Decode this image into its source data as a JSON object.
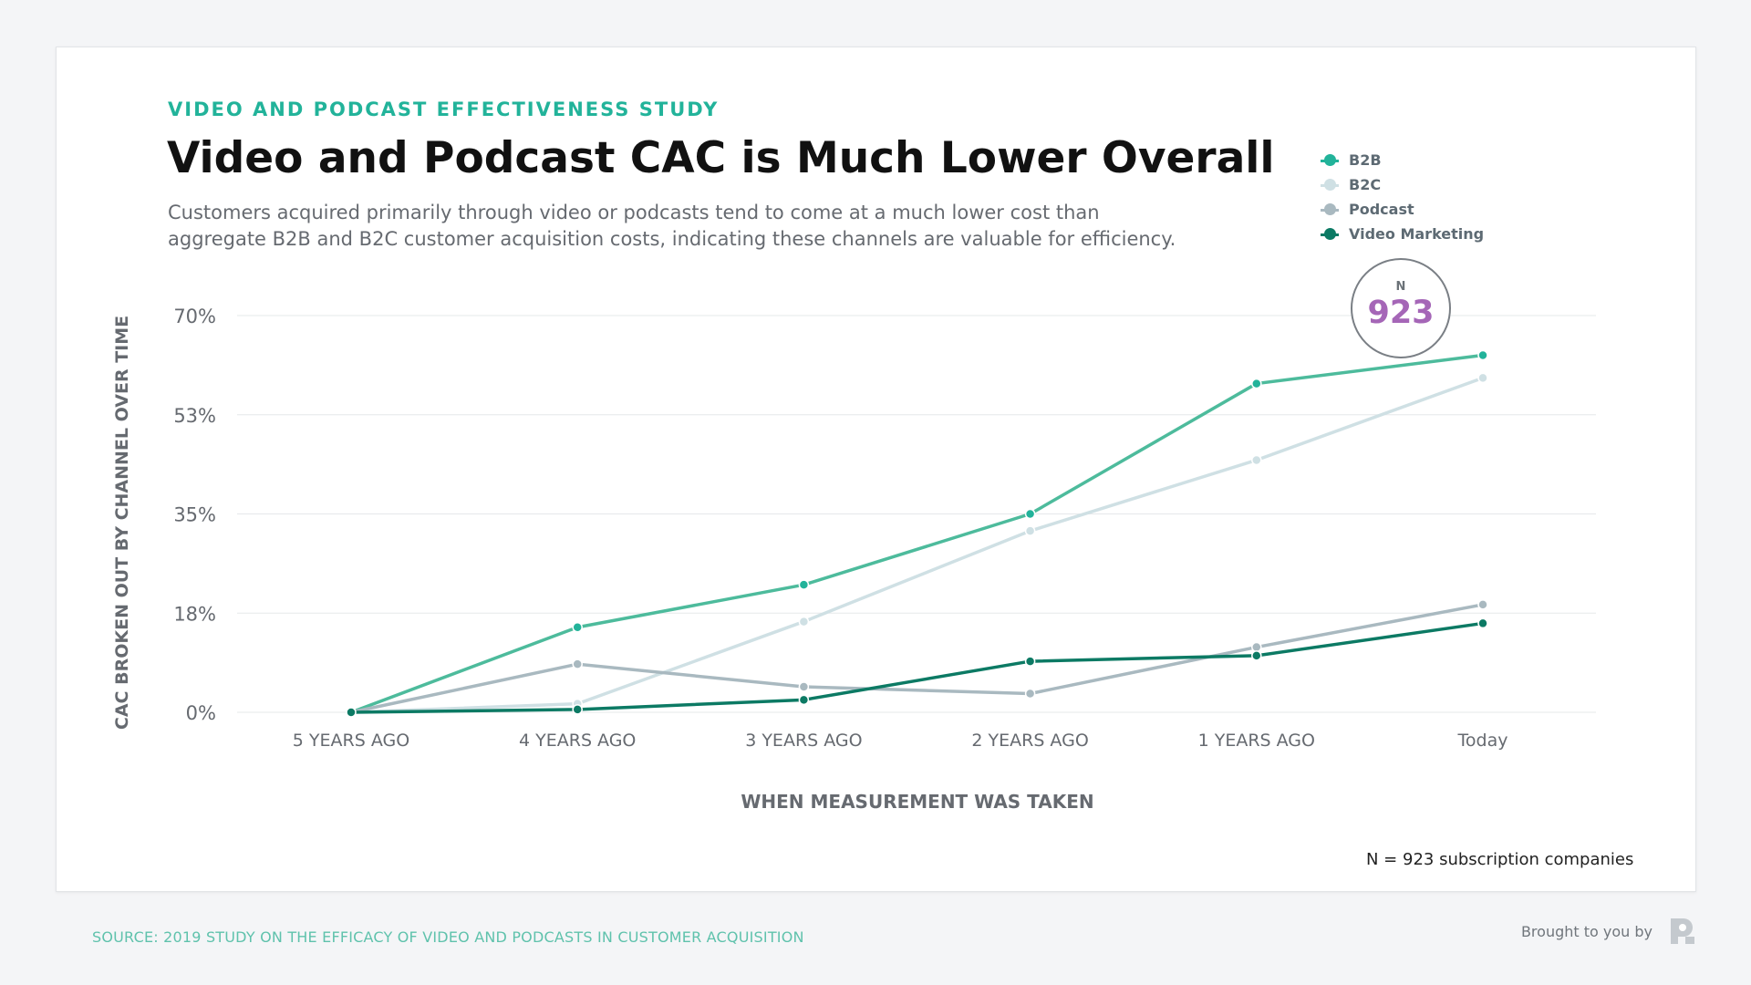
{
  "header": {
    "eyebrow": "VIDEO AND PODCAST EFFECTIVENESS STUDY",
    "title": "Video and Podcast CAC is Much Lower Overall",
    "subtitle": "Customers acquired primarily through video or podcasts tend to come at a much lower cost than aggregate B2B and B2C customer acquisition costs, indicating these channels are valuable for efficiency."
  },
  "legend": [
    {
      "name": "B2B",
      "color": "#22b39a"
    },
    {
      "name": "B2C",
      "color": "#cfe0e4"
    },
    {
      "name": "Podcast",
      "color": "#a9b9c0"
    },
    {
      "name": "Video Marketing",
      "color": "#0c7a64"
    }
  ],
  "badge": {
    "label": "N",
    "value": "923"
  },
  "chart_data": {
    "type": "line",
    "categories": [
      "5 YEARS AGO",
      "4 YEARS AGO",
      "3 YEARS AGO",
      "2 YEARS AGO",
      "1 YEARS AGO",
      "Today"
    ],
    "yticks": [
      "0%",
      "18%",
      "35%",
      "53%",
      "70%"
    ],
    "ylim": [
      0,
      70
    ],
    "xlabel": "WHEN MEASUREMENT WAS TAKEN",
    "ylabel": "CAC BROKEN OUT BY CHANNEL OVER TIME",
    "grid": true,
    "legend_position": "top-right",
    "series": [
      {
        "name": "B2B",
        "color": "#4dbb9c",
        "marker": "#22b39a",
        "values": [
          0,
          15,
          22.5,
          35,
          58,
          63
        ]
      },
      {
        "name": "B2C",
        "color": "#cfe0e4",
        "marker": "#cfe0e4",
        "values": [
          0,
          1.5,
          16,
          32,
          44.5,
          59
        ]
      },
      {
        "name": "Podcast",
        "color": "#a9b9c0",
        "marker": "#a9b9c0",
        "values": [
          0,
          8.5,
          4.5,
          3.3,
          11.5,
          19
        ]
      },
      {
        "name": "Video Marketing",
        "color": "#0c7a64",
        "marker": "#0c7a64",
        "values": [
          0,
          0.5,
          2.2,
          9,
          10,
          15.7
        ]
      }
    ]
  },
  "footnote": "N = 923 subscription companies",
  "source": "SOURCE: 2019 STUDY ON THE EFFICACY OF VIDEO AND PODCASTS IN CUSTOMER ACQUISITION",
  "brand": {
    "text": "Brought to you by"
  }
}
